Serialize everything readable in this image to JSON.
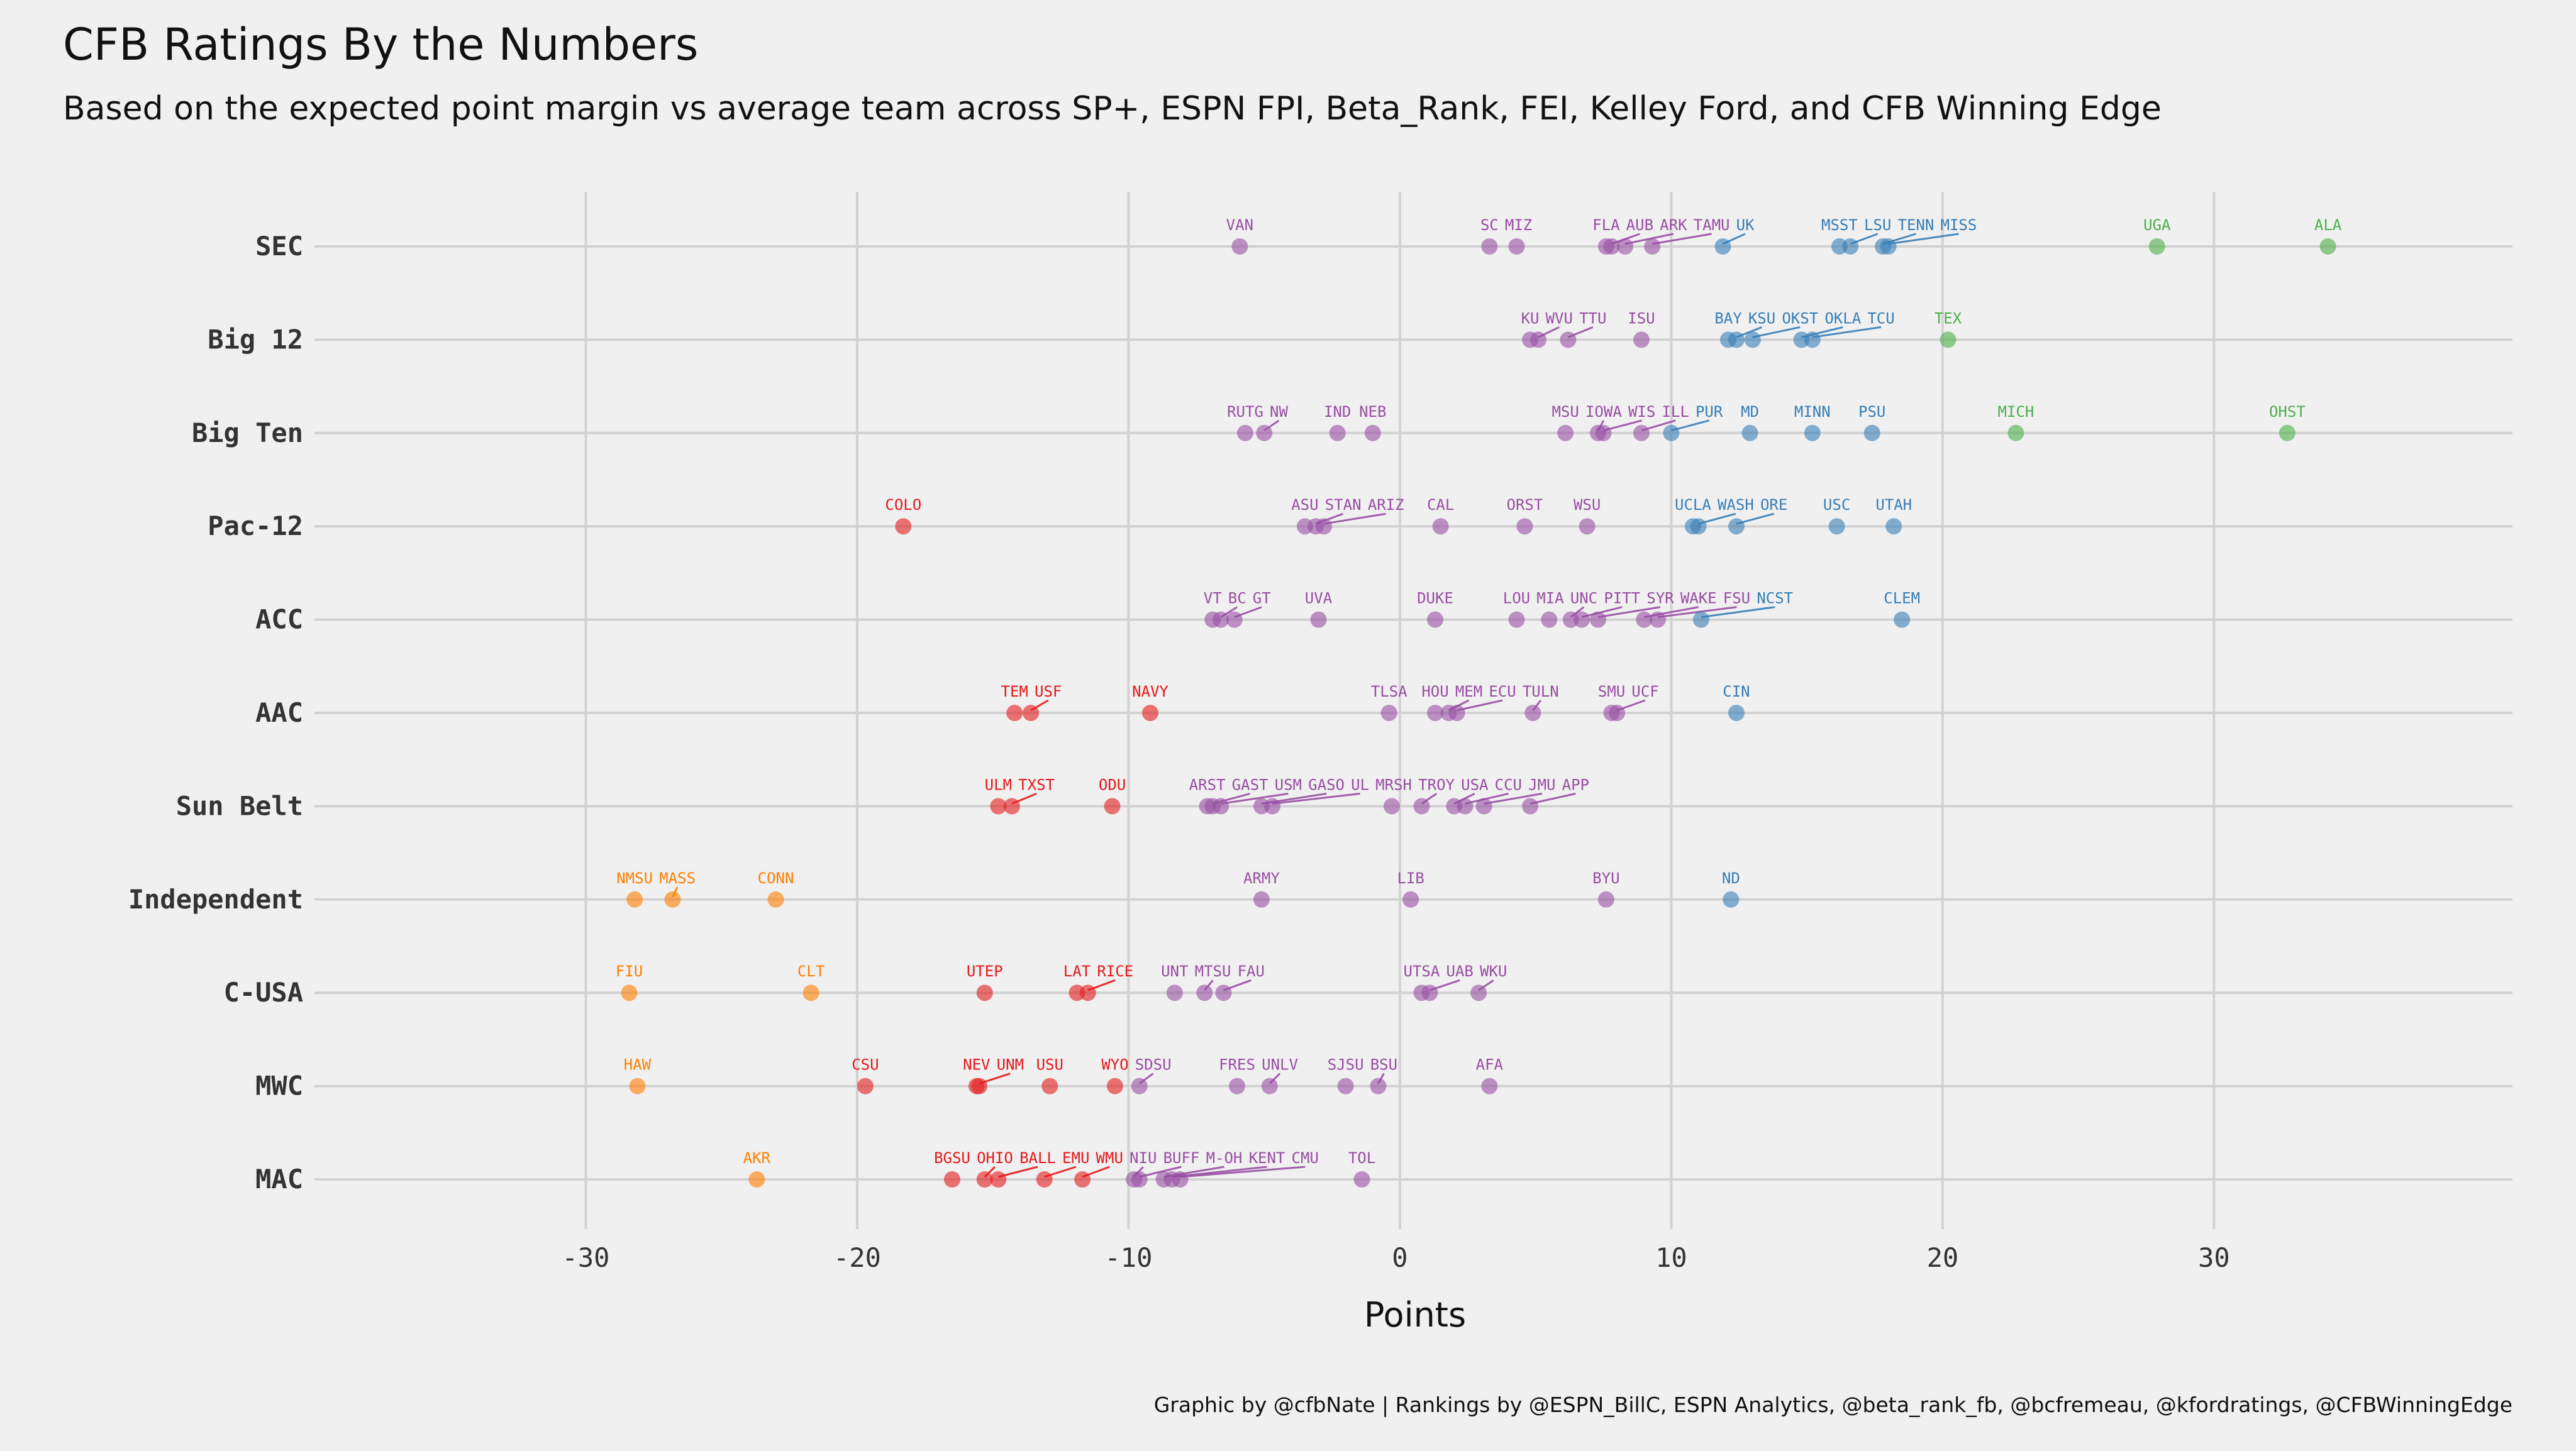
{
  "title": "CFB Ratings By the Numbers",
  "subtitle": "Based on the expected point margin vs average team across SP+, ESPN FPI, Beta_Rank, FEI, Kelley Ford, and CFB Winning Edge",
  "caption": "Graphic by @cfbNate | Rankings by @ESPN_BillC, ESPN Analytics, @beta_rank_fb, @bcfremeau, @kfordratings, @CFBWinningEdge",
  "colors": {
    "background": "#f0f0f0",
    "green": "#4daf4a",
    "blue": "#377eb8",
    "purple": "#984ea3",
    "red": "#e41a1c",
    "orange": "#ff7f00"
  },
  "chart_data": {
    "type": "scatter",
    "xlabel": "Points",
    "ylabel": "",
    "xlim": [
      -40,
      41
    ],
    "xticks": [
      -30,
      -20,
      -10,
      0,
      10,
      20,
      30
    ],
    "grid": true,
    "legend": "none",
    "categories": [
      "SEC",
      "Big 12",
      "Big Ten",
      "Pac-12",
      "ACC",
      "AAC",
      "Sun Belt",
      "Independent",
      "C-USA",
      "MWC",
      "MAC"
    ],
    "points": [
      {
        "conf": "SEC",
        "team": "VAN",
        "x": -5.9,
        "tier": "purple"
      },
      {
        "conf": "SEC",
        "team": "SC",
        "x": 3.3,
        "tier": "purple"
      },
      {
        "conf": "SEC",
        "team": "MIZ",
        "x": 4.3,
        "tier": "purple"
      },
      {
        "conf": "SEC",
        "team": "FLA",
        "x": 7.6,
        "tier": "purple"
      },
      {
        "conf": "SEC",
        "team": "AUB",
        "x": 7.8,
        "tier": "purple"
      },
      {
        "conf": "SEC",
        "team": "ARK",
        "x": 8.3,
        "tier": "purple"
      },
      {
        "conf": "SEC",
        "team": "TAMU",
        "x": 9.3,
        "tier": "purple"
      },
      {
        "conf": "SEC",
        "team": "UK",
        "x": 11.9,
        "tier": "blue"
      },
      {
        "conf": "SEC",
        "team": "MSST",
        "x": 16.2,
        "tier": "blue"
      },
      {
        "conf": "SEC",
        "team": "LSU",
        "x": 16.6,
        "tier": "blue"
      },
      {
        "conf": "SEC",
        "team": "TENN",
        "x": 17.8,
        "tier": "blue"
      },
      {
        "conf": "SEC",
        "team": "MISS",
        "x": 18.0,
        "tier": "blue"
      },
      {
        "conf": "SEC",
        "team": "UGA",
        "x": 27.9,
        "tier": "green"
      },
      {
        "conf": "SEC",
        "team": "ALA",
        "x": 34.2,
        "tier": "green"
      },
      {
        "conf": "Big 12",
        "team": "KU",
        "x": 4.8,
        "tier": "purple"
      },
      {
        "conf": "Big 12",
        "team": "WVU",
        "x": 5.1,
        "tier": "purple"
      },
      {
        "conf": "Big 12",
        "team": "TTU",
        "x": 6.2,
        "tier": "purple"
      },
      {
        "conf": "Big 12",
        "team": "ISU",
        "x": 8.9,
        "tier": "purple"
      },
      {
        "conf": "Big 12",
        "team": "BAY",
        "x": 12.1,
        "tier": "blue"
      },
      {
        "conf": "Big 12",
        "team": "KSU",
        "x": 12.4,
        "tier": "blue"
      },
      {
        "conf": "Big 12",
        "team": "OKST",
        "x": 13.0,
        "tier": "blue"
      },
      {
        "conf": "Big 12",
        "team": "OKLA",
        "x": 14.8,
        "tier": "blue"
      },
      {
        "conf": "Big 12",
        "team": "TCU",
        "x": 15.2,
        "tier": "blue"
      },
      {
        "conf": "Big 12",
        "team": "TEX",
        "x": 20.2,
        "tier": "green"
      },
      {
        "conf": "Big Ten",
        "team": "RUTG",
        "x": -5.7,
        "tier": "purple"
      },
      {
        "conf": "Big Ten",
        "team": "NW",
        "x": -5.0,
        "tier": "purple"
      },
      {
        "conf": "Big Ten",
        "team": "IND",
        "x": -2.3,
        "tier": "purple"
      },
      {
        "conf": "Big Ten",
        "team": "NEB",
        "x": -1.0,
        "tier": "purple"
      },
      {
        "conf": "Big Ten",
        "team": "MSU",
        "x": 6.1,
        "tier": "purple"
      },
      {
        "conf": "Big Ten",
        "team": "IOWA",
        "x": 7.3,
        "tier": "purple"
      },
      {
        "conf": "Big Ten",
        "team": "WIS",
        "x": 7.5,
        "tier": "purple"
      },
      {
        "conf": "Big Ten",
        "team": "ILL",
        "x": 8.9,
        "tier": "purple"
      },
      {
        "conf": "Big Ten",
        "team": "PUR",
        "x": 10.0,
        "tier": "blue"
      },
      {
        "conf": "Big Ten",
        "team": "MD",
        "x": 12.9,
        "tier": "blue"
      },
      {
        "conf": "Big Ten",
        "team": "MINN",
        "x": 15.2,
        "tier": "blue"
      },
      {
        "conf": "Big Ten",
        "team": "PSU",
        "x": 17.4,
        "tier": "blue"
      },
      {
        "conf": "Big Ten",
        "team": "MICH",
        "x": 22.7,
        "tier": "green"
      },
      {
        "conf": "Big Ten",
        "team": "OHST",
        "x": 32.7,
        "tier": "green"
      },
      {
        "conf": "Pac-12",
        "team": "COLO",
        "x": -18.3,
        "tier": "red"
      },
      {
        "conf": "Pac-12",
        "team": "ASU",
        "x": -3.5,
        "tier": "purple"
      },
      {
        "conf": "Pac-12",
        "team": "STAN",
        "x": -3.1,
        "tier": "purple"
      },
      {
        "conf": "Pac-12",
        "team": "ARIZ",
        "x": -2.8,
        "tier": "purple"
      },
      {
        "conf": "Pac-12",
        "team": "CAL",
        "x": 1.5,
        "tier": "purple"
      },
      {
        "conf": "Pac-12",
        "team": "ORST",
        "x": 4.6,
        "tier": "purple"
      },
      {
        "conf": "Pac-12",
        "team": "WSU",
        "x": 6.9,
        "tier": "purple"
      },
      {
        "conf": "Pac-12",
        "team": "UCLA",
        "x": 10.8,
        "tier": "blue"
      },
      {
        "conf": "Pac-12",
        "team": "WASH",
        "x": 11.0,
        "tier": "blue"
      },
      {
        "conf": "Pac-12",
        "team": "ORE",
        "x": 12.4,
        "tier": "blue"
      },
      {
        "conf": "Pac-12",
        "team": "USC",
        "x": 16.1,
        "tier": "blue"
      },
      {
        "conf": "Pac-12",
        "team": "UTAH",
        "x": 18.2,
        "tier": "blue"
      },
      {
        "conf": "ACC",
        "team": "VT",
        "x": -6.9,
        "tier": "purple"
      },
      {
        "conf": "ACC",
        "team": "BC",
        "x": -6.6,
        "tier": "purple"
      },
      {
        "conf": "ACC",
        "team": "GT",
        "x": -6.1,
        "tier": "purple"
      },
      {
        "conf": "ACC",
        "team": "UVA",
        "x": -3.0,
        "tier": "purple"
      },
      {
        "conf": "ACC",
        "team": "DUKE",
        "x": 1.3,
        "tier": "purple"
      },
      {
        "conf": "ACC",
        "team": "LOU",
        "x": 4.3,
        "tier": "purple"
      },
      {
        "conf": "ACC",
        "team": "MIA",
        "x": 5.5,
        "tier": "purple"
      },
      {
        "conf": "ACC",
        "team": "UNC",
        "x": 6.3,
        "tier": "purple"
      },
      {
        "conf": "ACC",
        "team": "PITT",
        "x": 6.7,
        "tier": "purple"
      },
      {
        "conf": "ACC",
        "team": "SYR",
        "x": 7.3,
        "tier": "purple"
      },
      {
        "conf": "ACC",
        "team": "WAKE",
        "x": 9.0,
        "tier": "purple"
      },
      {
        "conf": "ACC",
        "team": "FSU",
        "x": 9.5,
        "tier": "purple"
      },
      {
        "conf": "ACC",
        "team": "NCST",
        "x": 11.1,
        "tier": "blue"
      },
      {
        "conf": "ACC",
        "team": "CLEM",
        "x": 18.5,
        "tier": "blue"
      },
      {
        "conf": "AAC",
        "team": "TEM",
        "x": -14.2,
        "tier": "red"
      },
      {
        "conf": "AAC",
        "team": "USF",
        "x": -13.6,
        "tier": "red"
      },
      {
        "conf": "AAC",
        "team": "NAVY",
        "x": -9.2,
        "tier": "red"
      },
      {
        "conf": "AAC",
        "team": "TLSA",
        "x": -0.4,
        "tier": "purple"
      },
      {
        "conf": "AAC",
        "team": "HOU",
        "x": 1.3,
        "tier": "purple"
      },
      {
        "conf": "AAC",
        "team": "MEM",
        "x": 1.8,
        "tier": "purple"
      },
      {
        "conf": "AAC",
        "team": "ECU",
        "x": 2.1,
        "tier": "purple"
      },
      {
        "conf": "AAC",
        "team": "TULN",
        "x": 4.9,
        "tier": "purple"
      },
      {
        "conf": "AAC",
        "team": "SMU",
        "x": 7.8,
        "tier": "purple"
      },
      {
        "conf": "AAC",
        "team": "UCF",
        "x": 8.0,
        "tier": "purple"
      },
      {
        "conf": "AAC",
        "team": "CIN",
        "x": 12.4,
        "tier": "blue"
      },
      {
        "conf": "Sun Belt",
        "team": "ULM",
        "x": -14.8,
        "tier": "red"
      },
      {
        "conf": "Sun Belt",
        "team": "TXST",
        "x": -14.3,
        "tier": "red"
      },
      {
        "conf": "Sun Belt",
        "team": "ODU",
        "x": -10.6,
        "tier": "red"
      },
      {
        "conf": "Sun Belt",
        "team": "ARST",
        "x": -7.1,
        "tier": "purple"
      },
      {
        "conf": "Sun Belt",
        "team": "GAST",
        "x": -6.9,
        "tier": "purple"
      },
      {
        "conf": "Sun Belt",
        "team": "USM",
        "x": -6.6,
        "tier": "purple"
      },
      {
        "conf": "Sun Belt",
        "team": "GASO",
        "x": -5.1,
        "tier": "purple"
      },
      {
        "conf": "Sun Belt",
        "team": "UL",
        "x": -4.7,
        "tier": "purple"
      },
      {
        "conf": "Sun Belt",
        "team": "MRSH",
        "x": -0.3,
        "tier": "purple"
      },
      {
        "conf": "Sun Belt",
        "team": "TROY",
        "x": 0.8,
        "tier": "purple"
      },
      {
        "conf": "Sun Belt",
        "team": "USA",
        "x": 2.0,
        "tier": "purple"
      },
      {
        "conf": "Sun Belt",
        "team": "CCU",
        "x": 2.4,
        "tier": "purple"
      },
      {
        "conf": "Sun Belt",
        "team": "JMU",
        "x": 3.1,
        "tier": "purple"
      },
      {
        "conf": "Sun Belt",
        "team": "APP",
        "x": 4.8,
        "tier": "purple"
      },
      {
        "conf": "Independent",
        "team": "NMSU",
        "x": -28.2,
        "tier": "orange"
      },
      {
        "conf": "Independent",
        "team": "MASS",
        "x": -26.8,
        "tier": "orange"
      },
      {
        "conf": "Independent",
        "team": "CONN",
        "x": -23.0,
        "tier": "orange"
      },
      {
        "conf": "Independent",
        "team": "ARMY",
        "x": -5.1,
        "tier": "purple"
      },
      {
        "conf": "Independent",
        "team": "LIB",
        "x": 0.4,
        "tier": "purple"
      },
      {
        "conf": "Independent",
        "team": "BYU",
        "x": 7.6,
        "tier": "purple"
      },
      {
        "conf": "Independent",
        "team": "ND",
        "x": 12.2,
        "tier": "blue"
      },
      {
        "conf": "C-USA",
        "team": "FIU",
        "x": -28.4,
        "tier": "orange"
      },
      {
        "conf": "C-USA",
        "team": "CLT",
        "x": -21.7,
        "tier": "orange"
      },
      {
        "conf": "C-USA",
        "team": "UTEP",
        "x": -15.3,
        "tier": "red"
      },
      {
        "conf": "C-USA",
        "team": "LAT",
        "x": -11.9,
        "tier": "red"
      },
      {
        "conf": "C-USA",
        "team": "RICE",
        "x": -11.5,
        "tier": "red"
      },
      {
        "conf": "C-USA",
        "team": "UNT",
        "x": -8.3,
        "tier": "purple"
      },
      {
        "conf": "C-USA",
        "team": "MTSU",
        "x": -7.2,
        "tier": "purple"
      },
      {
        "conf": "C-USA",
        "team": "FAU",
        "x": -6.5,
        "tier": "purple"
      },
      {
        "conf": "C-USA",
        "team": "UTSA",
        "x": 0.8,
        "tier": "purple"
      },
      {
        "conf": "C-USA",
        "team": "UAB",
        "x": 1.1,
        "tier": "purple"
      },
      {
        "conf": "C-USA",
        "team": "WKU",
        "x": 2.9,
        "tier": "purple"
      },
      {
        "conf": "MWC",
        "team": "HAW",
        "x": -28.1,
        "tier": "orange"
      },
      {
        "conf": "MWC",
        "team": "CSU",
        "x": -19.7,
        "tier": "red"
      },
      {
        "conf": "MWC",
        "team": "NEV",
        "x": -15.6,
        "tier": "red"
      },
      {
        "conf": "MWC",
        "team": "UNM",
        "x": -15.5,
        "tier": "red"
      },
      {
        "conf": "MWC",
        "team": "USU",
        "x": -12.9,
        "tier": "red"
      },
      {
        "conf": "MWC",
        "team": "WYO",
        "x": -10.5,
        "tier": "red"
      },
      {
        "conf": "MWC",
        "team": "SDSU",
        "x": -9.6,
        "tier": "purple"
      },
      {
        "conf": "MWC",
        "team": "FRES",
        "x": -6.0,
        "tier": "purple"
      },
      {
        "conf": "MWC",
        "team": "UNLV",
        "x": -4.8,
        "tier": "purple"
      },
      {
        "conf": "MWC",
        "team": "SJSU",
        "x": -2.0,
        "tier": "purple"
      },
      {
        "conf": "MWC",
        "team": "BSU",
        "x": -0.8,
        "tier": "purple"
      },
      {
        "conf": "MWC",
        "team": "AFA",
        "x": 3.3,
        "tier": "purple"
      },
      {
        "conf": "MAC",
        "team": "AKR",
        "x": -23.7,
        "tier": "orange"
      },
      {
        "conf": "MAC",
        "team": "BGSU",
        "x": -16.5,
        "tier": "red"
      },
      {
        "conf": "MAC",
        "team": "OHIO",
        "x": -15.3,
        "tier": "red"
      },
      {
        "conf": "MAC",
        "team": "BALL",
        "x": -14.8,
        "tier": "red"
      },
      {
        "conf": "MAC",
        "team": "EMU",
        "x": -13.1,
        "tier": "red"
      },
      {
        "conf": "MAC",
        "team": "WMU",
        "x": -11.7,
        "tier": "red"
      },
      {
        "conf": "MAC",
        "team": "NIU",
        "x": -9.8,
        "tier": "purple"
      },
      {
        "conf": "MAC",
        "team": "BUFF",
        "x": -9.6,
        "tier": "purple"
      },
      {
        "conf": "MAC",
        "team": "M-OH",
        "x": -8.7,
        "tier": "purple"
      },
      {
        "conf": "MAC",
        "team": "KENT",
        "x": -8.4,
        "tier": "purple"
      },
      {
        "conf": "MAC",
        "team": "CMU",
        "x": -8.1,
        "tier": "purple"
      },
      {
        "conf": "MAC",
        "team": "TOL",
        "x": -1.4,
        "tier": "purple"
      }
    ]
  }
}
